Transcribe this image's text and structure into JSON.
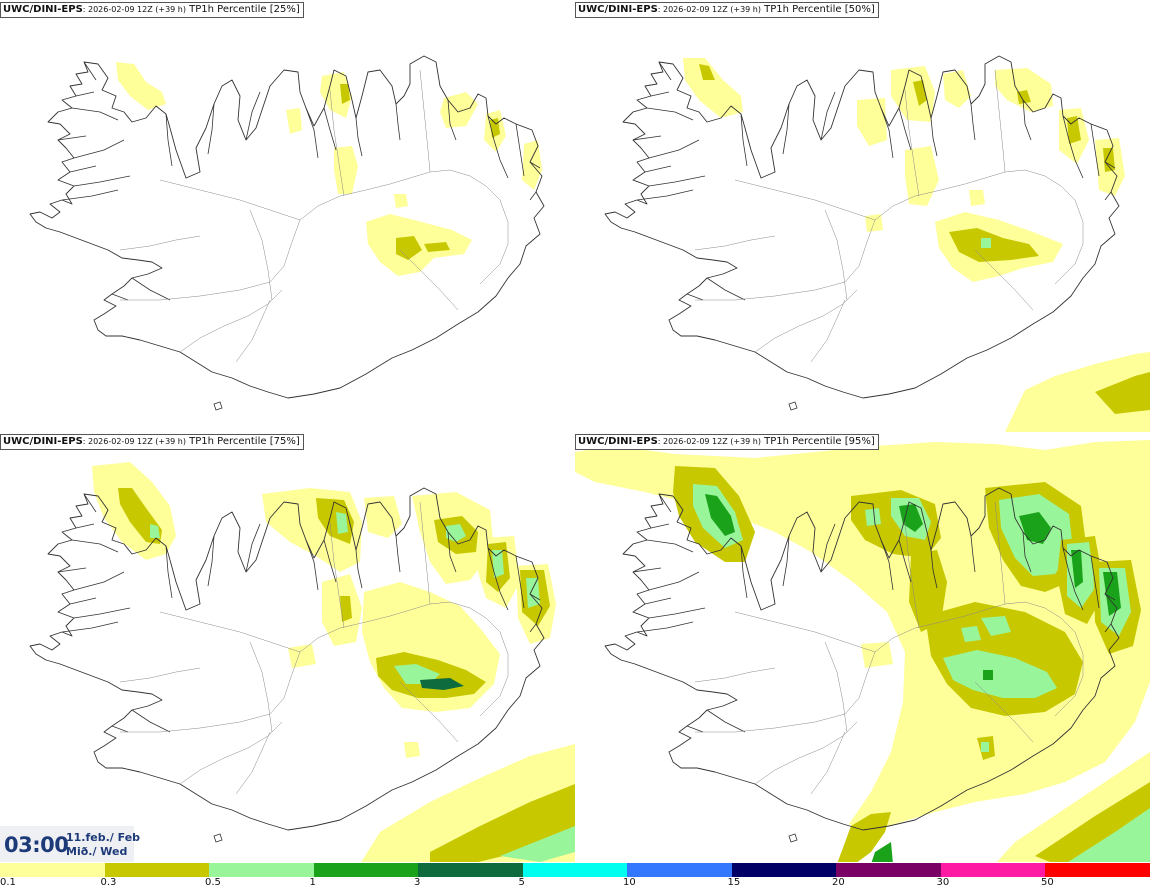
{
  "panels": [
    {
      "model": "UWC/DINI-EPS",
      "run": ": 2026-02-09 12Z (+39 h)",
      "param": " TP1h Percentile [25%]"
    },
    {
      "model": "UWC/DINI-EPS",
      "run": ": 2026-02-09 12Z (+39 h)",
      "param": " TP1h Percentile [50%]"
    },
    {
      "model": "UWC/DINI-EPS",
      "run": ": 2026-02-09 12Z (+39 h)",
      "param": " TP1h Percentile [75%]"
    },
    {
      "model": "UWC/DINI-EPS",
      "run": ": 2026-02-09 12Z (+39 h)",
      "param": " TP1h Percentile [95%]"
    }
  ],
  "valid_time": {
    "clock": "03:00",
    "date_line1": "11.feb./ Feb",
    "date_line2": "Mið./ Wed"
  },
  "colors": {
    "yellow_light": "#ffff9a",
    "olive": "#c8c800",
    "green_light": "#99f599",
    "green": "#1aa31a",
    "green_dark": "#0d6b3d",
    "coastline": "#333333"
  },
  "legend": {
    "ticks": [
      "0.1",
      "0.3",
      "0.5",
      "1",
      "3",
      "5",
      "10",
      "15",
      "20",
      "30",
      "50"
    ],
    "colors": [
      "#ffff9a",
      "#c8c800",
      "#99f599",
      "#1aa31a",
      "#0d6b3d",
      "#00ffee",
      "#3377ff",
      "#000066",
      "#7a0066",
      "#ff1aa3",
      "#ff0000"
    ]
  }
}
